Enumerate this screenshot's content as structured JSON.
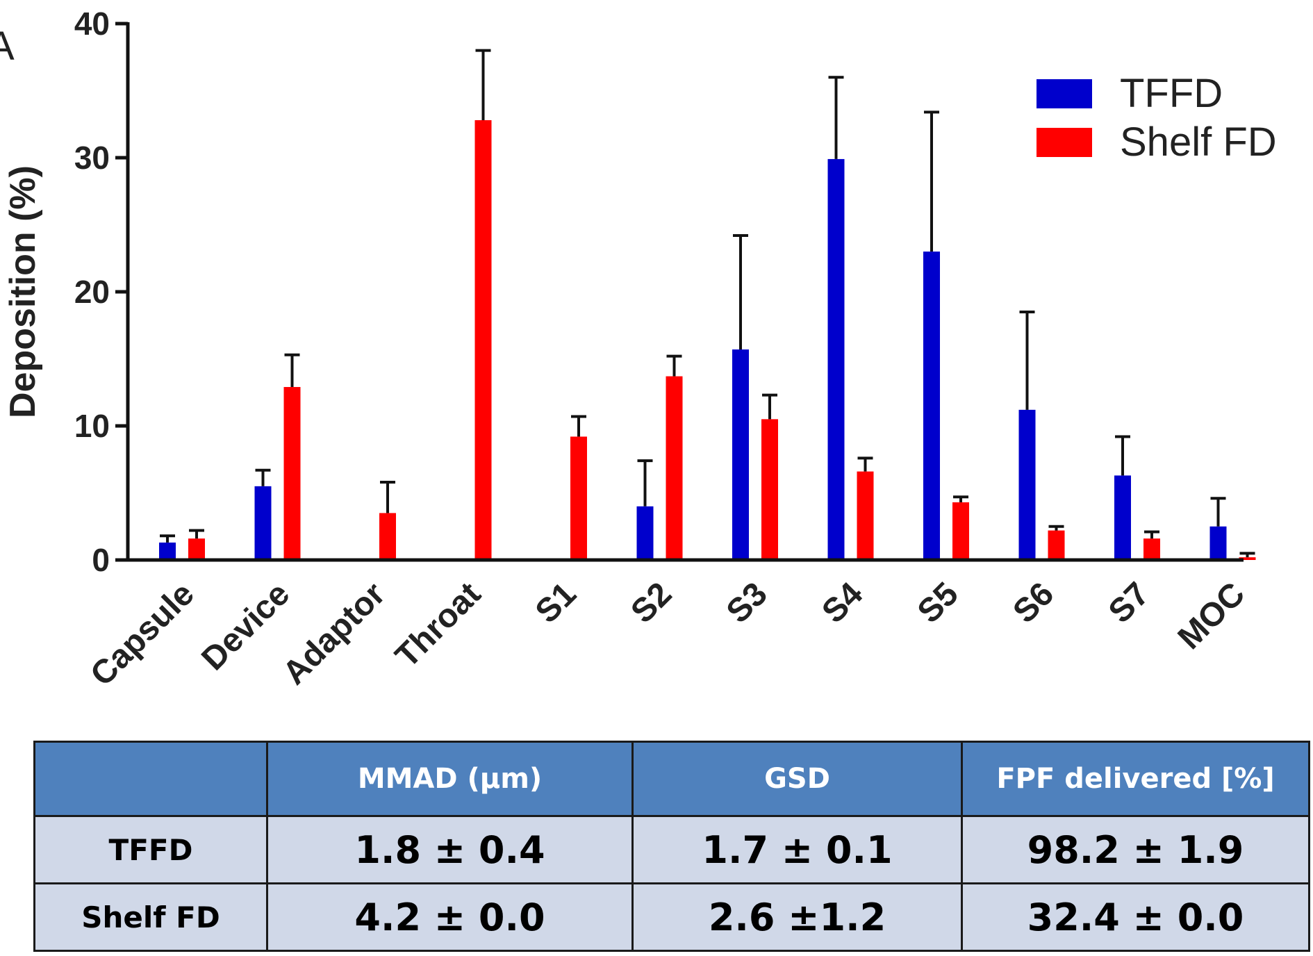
{
  "chart_data": {
    "type": "bar",
    "panel_label": "A",
    "ylabel": "Deposition (%)",
    "ylim": [
      0,
      40
    ],
    "yticks": [
      "0",
      "10",
      "20",
      "30",
      "40"
    ],
    "categories": [
      "Capsule",
      "Device",
      "Adaptor",
      "Throat",
      "S1",
      "S2",
      "S3",
      "S4",
      "S5",
      "S6",
      "S7",
      "MOC"
    ],
    "series": [
      {
        "name": "TFFD",
        "color": "#0000cc",
        "values": [
          1.3,
          5.5,
          null,
          null,
          null,
          4.0,
          15.7,
          29.9,
          23.0,
          11.2,
          6.3,
          2.5
        ],
        "errors": [
          0.5,
          1.2,
          null,
          null,
          null,
          3.4,
          8.5,
          6.1,
          10.4,
          7.3,
          2.9,
          2.1
        ]
      },
      {
        "name": "Shelf FD",
        "color": "#ff0000",
        "values": [
          1.6,
          12.9,
          3.5,
          32.8,
          9.2,
          13.7,
          10.5,
          6.6,
          4.3,
          2.2,
          1.6,
          0.2
        ],
        "errors": [
          0.6,
          2.4,
          2.3,
          5.2,
          1.5,
          1.5,
          1.8,
          1.0,
          0.4,
          0.3,
          0.5,
          0.3
        ]
      }
    ],
    "legend_position": "top-right"
  },
  "table": {
    "headers": [
      "",
      "MMAD (µm)",
      "GSD",
      "FPF delivered [%]"
    ],
    "rows": [
      {
        "label": "TFFD",
        "mmad": "1.8 ± 0.4",
        "gsd": "1.7 ± 0.1",
        "fpf": "98.2 ± 1.9"
      },
      {
        "label": "Shelf FD",
        "mmad": "4.2 ± 0.0",
        "gsd": "2.6 ±1.2",
        "fpf": "32.4 ± 0.0"
      }
    ]
  }
}
